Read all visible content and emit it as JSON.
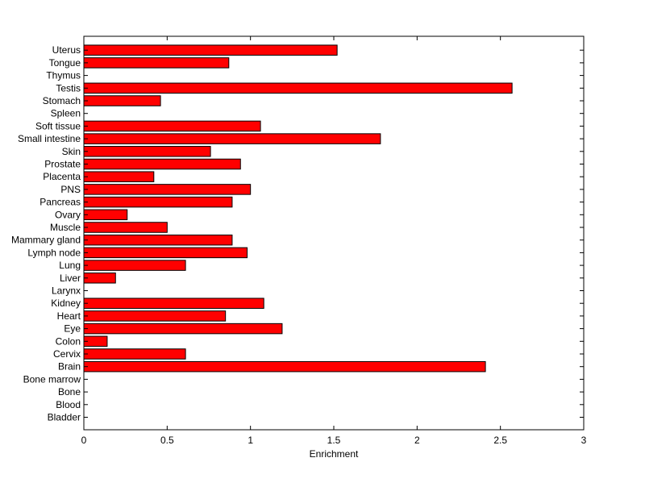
{
  "chart_data": {
    "type": "bar",
    "orientation": "horizontal",
    "title": "",
    "xlabel": "Enrichment",
    "ylabel": "",
    "xlim": [
      0,
      3
    ],
    "xticks": [
      0,
      0.5,
      1,
      1.5,
      2,
      2.5,
      3
    ],
    "xtick_labels": [
      "0",
      "0.5",
      "1",
      "1.5",
      "2",
      "2.5",
      "3"
    ],
    "grid": false,
    "bar_color": "#ff0000",
    "categories": [
      "Bladder",
      "Blood",
      "Bone",
      "Bone marrow",
      "Brain",
      "Cervix",
      "Colon",
      "Eye",
      "Heart",
      "Kidney",
      "Larynx",
      "Liver",
      "Lung",
      "Lymph node",
      "Mammary gland",
      "Muscle",
      "Ovary",
      "Pancreas",
      "PNS",
      "Placenta",
      "Prostate",
      "Skin",
      "Small intestine",
      "Soft tissue",
      "Spleen",
      "Stomach",
      "Testis",
      "Thymus",
      "Tongue",
      "Uterus"
    ],
    "values": [
      0,
      0,
      0,
      0,
      2.41,
      0.61,
      0.14,
      1.19,
      0.85,
      1.08,
      0,
      0.19,
      0.61,
      0.98,
      0.89,
      0.5,
      0.26,
      0.89,
      1.0,
      0.42,
      0.94,
      0.76,
      1.78,
      1.06,
      0,
      0.46,
      2.57,
      0,
      0.87,
      1.52
    ]
  }
}
